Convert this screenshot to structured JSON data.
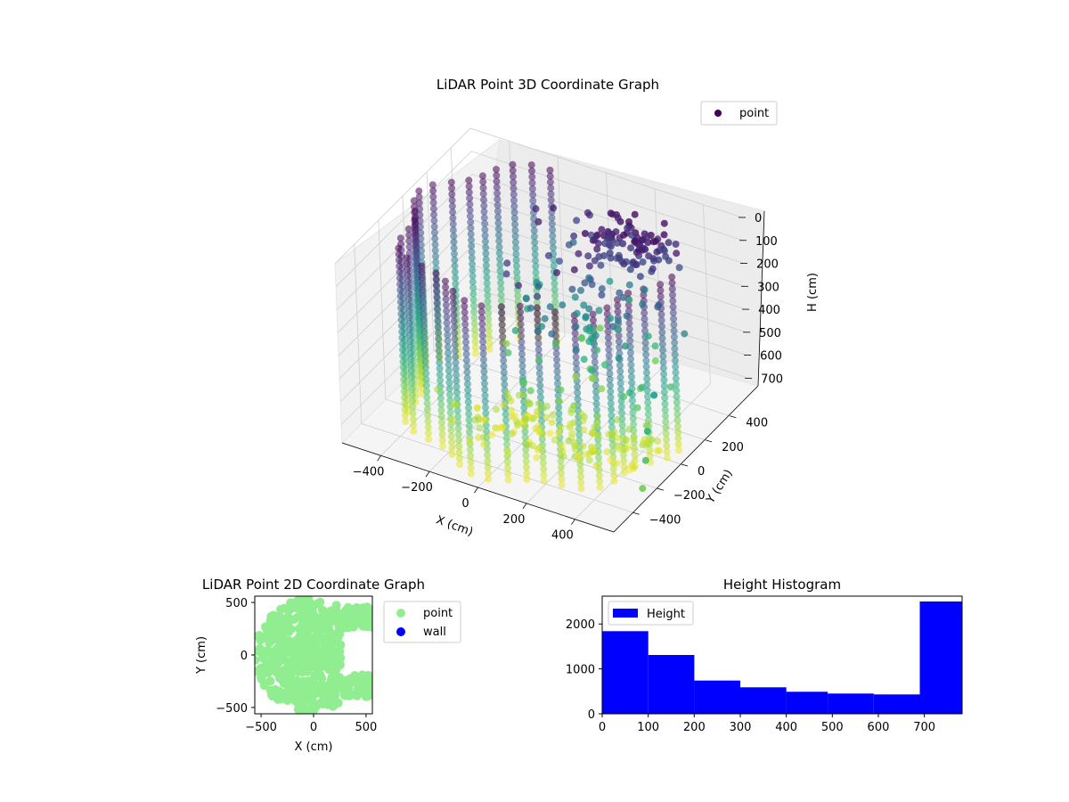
{
  "chart_data": [
    {
      "type": "scatter",
      "projection": "3d",
      "title": "LiDAR Point 3D Coordinate Graph",
      "xlabel": "X (cm)",
      "ylabel": "Y (cm)",
      "zlabel": "H (cm)",
      "xlim": [
        -560,
        560
      ],
      "ylim": [
        -560,
        560
      ],
      "zlim": [
        0,
        780
      ],
      "z_inverted": true,
      "xticks": [
        -400,
        -200,
        0,
        200,
        400
      ],
      "yticks": [
        -400,
        -200,
        0,
        200,
        400
      ],
      "zticks": [
        0,
        100,
        200,
        300,
        400,
        500,
        600,
        700
      ],
      "colormap": "viridis",
      "legend": {
        "placement": "upper-right",
        "entries": [
          "point"
        ]
      },
      "legend_color": "#440154",
      "series": [
        {
          "name": "point",
          "shape": "cylindrical wall of radius ~540 cm with dense upper cap and fan-like floor returns",
          "radius": 540,
          "height_range": [
            0,
            780
          ]
        }
      ]
    },
    {
      "type": "scatter",
      "title": "LiDAR Point 2D Coordinate Graph",
      "xlabel": "X (cm)",
      "ylabel": "Y (cm)",
      "xlim": [
        -560,
        560
      ],
      "ylim": [
        -560,
        560
      ],
      "xticks": [
        -500,
        0,
        500
      ],
      "yticks": [
        -500,
        0,
        500
      ],
      "legend": {
        "placement": "outside-right",
        "entries": [
          "point",
          "wall"
        ]
      },
      "series": [
        {
          "name": "point",
          "color": "#90ee90"
        },
        {
          "name": "wall",
          "color": "#0000ff"
        }
      ]
    },
    {
      "type": "bar",
      "histogram": true,
      "title": "Height Histogram",
      "xlim": [
        0,
        782
      ],
      "ylim": [
        0,
        2620
      ],
      "xticks": [
        0,
        100,
        200,
        300,
        400,
        500,
        600,
        700
      ],
      "yticks": [
        0,
        1000,
        2000
      ],
      "bin_edges": [
        0,
        100,
        200,
        300,
        400,
        490,
        590,
        690,
        782
      ],
      "values": [
        1840,
        1310,
        740,
        590,
        490,
        450,
        430,
        2500
      ],
      "color": "#0000ff",
      "legend": {
        "placement": "upper-left",
        "entries": [
          "Height"
        ]
      },
      "series": [
        {
          "name": "Height"
        }
      ]
    }
  ]
}
